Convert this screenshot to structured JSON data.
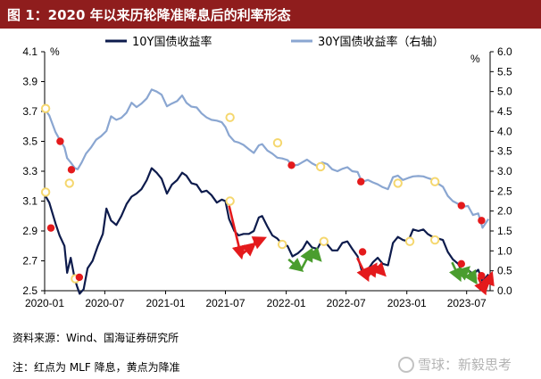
{
  "title": "图 1：2020 年以来历轮降准降息后的利率形态",
  "source": "资料来源：Wind、国海证券研究所",
  "note": "注：红点为 MLF 降息，黄点为降准",
  "watermark": "雪球：新毅思考",
  "colors": {
    "title_bg": "#8f1d1d",
    "series_10y": "#0d1b4c",
    "series_30y": "#8aa6d1",
    "mlf_cut": "#e41a1c",
    "rrr_cut": "#f5d76e",
    "arrow_up": "#e41a1c",
    "arrow_down": "#4a9d2e"
  },
  "chart_data": {
    "type": "line",
    "left_unit": "%",
    "right_unit": "%",
    "x_ticks": [
      "2020-01",
      "2020-07",
      "2021-01",
      "2021-07",
      "2022-01",
      "2022-07",
      "2023-01",
      "2023-07"
    ],
    "x_range": [
      "2020-01-01",
      "2023-09-10"
    ],
    "y_left": {
      "min": 2.5,
      "max": 4.1,
      "ticks": [
        "2.5",
        "2.7",
        "2.9",
        "3.1",
        "3.3",
        "3.5",
        "3.7",
        "3.9",
        "4.1"
      ]
    },
    "y_right": {
      "min": 0.0,
      "max": 6.0,
      "ticks": [
        "0.0",
        "0.5",
        "1.0",
        "1.5",
        "2.0",
        "2.5",
        "3.0",
        "3.5",
        "4.0",
        "4.5",
        "5.0",
        "5.5",
        "6.0"
      ]
    },
    "series": [
      {
        "name": "10Y国债收益率",
        "axis": "left",
        "points": [
          [
            "2020-01-02",
            3.14
          ],
          [
            "2020-01-15",
            3.09
          ],
          [
            "2020-02-03",
            2.95
          ],
          [
            "2020-02-15",
            2.87
          ],
          [
            "2020-03-01",
            2.8
          ],
          [
            "2020-03-09",
            2.62
          ],
          [
            "2020-03-20",
            2.72
          ],
          [
            "2020-04-01",
            2.58
          ],
          [
            "2020-04-08",
            2.53
          ],
          [
            "2020-04-16",
            2.48
          ],
          [
            "2020-04-28",
            2.51
          ],
          [
            "2020-05-10",
            2.65
          ],
          [
            "2020-05-25",
            2.7
          ],
          [
            "2020-06-10",
            2.8
          ],
          [
            "2020-06-25",
            2.88
          ],
          [
            "2020-07-06",
            3.05
          ],
          [
            "2020-07-20",
            2.97
          ],
          [
            "2020-08-05",
            2.94
          ],
          [
            "2020-08-20",
            3.0
          ],
          [
            "2020-09-05",
            3.08
          ],
          [
            "2020-09-20",
            3.13
          ],
          [
            "2020-10-05",
            3.15
          ],
          [
            "2020-10-20",
            3.18
          ],
          [
            "2020-11-05",
            3.24
          ],
          [
            "2020-11-20",
            3.32
          ],
          [
            "2020-12-05",
            3.29
          ],
          [
            "2020-12-20",
            3.25
          ],
          [
            "2021-01-05",
            3.15
          ],
          [
            "2021-01-20",
            3.21
          ],
          [
            "2021-02-05",
            3.24
          ],
          [
            "2021-02-20",
            3.29
          ],
          [
            "2021-03-05",
            3.27
          ],
          [
            "2021-03-20",
            3.22
          ],
          [
            "2021-04-05",
            3.21
          ],
          [
            "2021-04-20",
            3.16
          ],
          [
            "2021-05-05",
            3.17
          ],
          [
            "2021-05-20",
            3.14
          ],
          [
            "2021-06-05",
            3.09
          ],
          [
            "2021-06-20",
            3.11
          ],
          [
            "2021-07-01",
            3.1
          ],
          [
            "2021-07-12",
            2.98
          ],
          [
            "2021-07-28",
            2.9
          ],
          [
            "2021-08-10",
            2.87
          ],
          [
            "2021-08-25",
            2.88
          ],
          [
            "2021-09-10",
            2.88
          ],
          [
            "2021-09-25",
            2.9
          ],
          [
            "2021-10-10",
            2.99
          ],
          [
            "2021-10-20",
            3.0
          ],
          [
            "2021-11-05",
            2.93
          ],
          [
            "2021-11-20",
            2.87
          ],
          [
            "2021-12-05",
            2.85
          ],
          [
            "2021-12-20",
            2.81
          ],
          [
            "2022-01-05",
            2.8
          ],
          [
            "2022-01-20",
            2.73
          ],
          [
            "2022-02-05",
            2.75
          ],
          [
            "2022-02-20",
            2.78
          ],
          [
            "2022-03-05",
            2.83
          ],
          [
            "2022-03-20",
            2.79
          ],
          [
            "2022-04-05",
            2.78
          ],
          [
            "2022-04-20",
            2.84
          ],
          [
            "2022-05-05",
            2.81
          ],
          [
            "2022-05-20",
            2.77
          ],
          [
            "2022-06-05",
            2.77
          ],
          [
            "2022-06-20",
            2.82
          ],
          [
            "2022-07-05",
            2.83
          ],
          [
            "2022-07-20",
            2.78
          ],
          [
            "2022-08-05",
            2.73
          ],
          [
            "2022-08-18",
            2.63
          ],
          [
            "2022-09-05",
            2.64
          ],
          [
            "2022-09-20",
            2.69
          ],
          [
            "2022-10-05",
            2.72
          ],
          [
            "2022-10-20",
            2.68
          ],
          [
            "2022-11-05",
            2.67
          ],
          [
            "2022-11-20",
            2.82
          ],
          [
            "2022-12-05",
            2.86
          ],
          [
            "2022-12-20",
            2.84
          ],
          [
            "2023-01-05",
            2.83
          ],
          [
            "2023-01-20",
            2.91
          ],
          [
            "2023-02-05",
            2.9
          ],
          [
            "2023-02-20",
            2.91
          ],
          [
            "2023-03-05",
            2.88
          ],
          [
            "2023-03-20",
            2.86
          ],
          [
            "2023-04-05",
            2.85
          ],
          [
            "2023-04-20",
            2.84
          ],
          [
            "2023-05-05",
            2.76
          ],
          [
            "2023-05-20",
            2.71
          ],
          [
            "2023-06-05",
            2.68
          ],
          [
            "2023-06-15",
            2.64
          ],
          [
            "2023-07-05",
            2.64
          ],
          [
            "2023-07-20",
            2.61
          ],
          [
            "2023-08-05",
            2.64
          ],
          [
            "2023-08-18",
            2.56
          ],
          [
            "2023-09-05",
            2.61
          ]
        ]
      },
      {
        "name": "30Y国债收益率（右轴）",
        "axis": "right",
        "points": [
          [
            "2020-01-02",
            4.55
          ],
          [
            "2020-01-15",
            4.4
          ],
          [
            "2020-02-03",
            3.98
          ],
          [
            "2020-02-15",
            3.8
          ],
          [
            "2020-03-01",
            3.6
          ],
          [
            "2020-03-09",
            3.33
          ],
          [
            "2020-03-20",
            3.22
          ],
          [
            "2020-04-01",
            3.08
          ],
          [
            "2020-04-10",
            3.05
          ],
          [
            "2020-04-22",
            3.22
          ],
          [
            "2020-05-05",
            3.44
          ],
          [
            "2020-05-20",
            3.59
          ],
          [
            "2020-06-05",
            3.79
          ],
          [
            "2020-06-20",
            3.88
          ],
          [
            "2020-07-06",
            4.01
          ],
          [
            "2020-07-20",
            4.38
          ],
          [
            "2020-08-05",
            4.29
          ],
          [
            "2020-08-20",
            4.34
          ],
          [
            "2020-09-05",
            4.47
          ],
          [
            "2020-09-20",
            4.72
          ],
          [
            "2020-10-05",
            4.61
          ],
          [
            "2020-10-20",
            4.7
          ],
          [
            "2020-11-05",
            4.83
          ],
          [
            "2020-11-20",
            5.05
          ],
          [
            "2020-12-05",
            5.0
          ],
          [
            "2020-12-20",
            4.92
          ],
          [
            "2021-01-05",
            4.63
          ],
          [
            "2021-01-20",
            4.7
          ],
          [
            "2021-02-05",
            4.76
          ],
          [
            "2021-02-20",
            4.9
          ],
          [
            "2021-03-05",
            4.72
          ],
          [
            "2021-03-20",
            4.62
          ],
          [
            "2021-04-05",
            4.6
          ],
          [
            "2021-04-20",
            4.45
          ],
          [
            "2021-05-05",
            4.35
          ],
          [
            "2021-05-20",
            4.29
          ],
          [
            "2021-06-05",
            4.27
          ],
          [
            "2021-06-20",
            4.23
          ],
          [
            "2021-07-01",
            4.11
          ],
          [
            "2021-07-12",
            3.9
          ],
          [
            "2021-07-28",
            3.75
          ],
          [
            "2021-08-10",
            3.72
          ],
          [
            "2021-08-25",
            3.66
          ],
          [
            "2021-09-10",
            3.55
          ],
          [
            "2021-09-25",
            3.46
          ],
          [
            "2021-10-10",
            3.65
          ],
          [
            "2021-10-20",
            3.68
          ],
          [
            "2021-11-05",
            3.52
          ],
          [
            "2021-11-20",
            3.44
          ],
          [
            "2021-12-05",
            3.34
          ],
          [
            "2021-12-20",
            3.32
          ],
          [
            "2022-01-05",
            3.28
          ],
          [
            "2022-01-20",
            3.14
          ],
          [
            "2022-02-05",
            3.16
          ],
          [
            "2022-02-20",
            3.23
          ],
          [
            "2022-03-05",
            3.29
          ],
          [
            "2022-03-20",
            3.2
          ],
          [
            "2022-04-05",
            3.13
          ],
          [
            "2022-04-20",
            3.22
          ],
          [
            "2022-05-05",
            3.18
          ],
          [
            "2022-05-20",
            3.05
          ],
          [
            "2022-06-05",
            3.0
          ],
          [
            "2022-06-20",
            3.06
          ],
          [
            "2022-07-05",
            3.1
          ],
          [
            "2022-07-20",
            3.0
          ],
          [
            "2022-08-05",
            2.98
          ],
          [
            "2022-08-18",
            2.73
          ],
          [
            "2022-09-05",
            2.78
          ],
          [
            "2022-09-20",
            2.72
          ],
          [
            "2022-10-05",
            2.67
          ],
          [
            "2022-10-20",
            2.6
          ],
          [
            "2022-11-05",
            2.55
          ],
          [
            "2022-11-20",
            2.85
          ],
          [
            "2022-12-05",
            2.89
          ],
          [
            "2022-12-20",
            2.78
          ],
          [
            "2023-01-05",
            2.83
          ],
          [
            "2023-01-20",
            2.87
          ],
          [
            "2023-02-05",
            2.88
          ],
          [
            "2023-02-20",
            2.87
          ],
          [
            "2023-03-05",
            2.83
          ],
          [
            "2023-03-20",
            2.79
          ],
          [
            "2023-04-05",
            2.69
          ],
          [
            "2023-04-20",
            2.61
          ],
          [
            "2023-05-05",
            2.38
          ],
          [
            "2023-05-20",
            2.25
          ],
          [
            "2023-06-05",
            2.18
          ],
          [
            "2023-06-15",
            2.1
          ],
          [
            "2023-07-05",
            2.13
          ],
          [
            "2023-07-20",
            1.9
          ],
          [
            "2023-08-05",
            1.94
          ],
          [
            "2023-08-18",
            1.58
          ],
          [
            "2023-09-05",
            1.8
          ]
        ]
      }
    ],
    "markers": [
      {
        "date": "2020-01-04",
        "value": 3.16,
        "axis": "left",
        "kind": "rrr"
      },
      {
        "date": "2020-01-04",
        "value": 3.72,
        "axis": "left",
        "kind": "rrr"
      },
      {
        "date": "2020-01-20",
        "value": 2.92,
        "axis": "left",
        "kind": "mlf"
      },
      {
        "date": "2020-02-17",
        "value": 3.5,
        "axis": "left",
        "kind": "mlf"
      },
      {
        "date": "2020-03-16",
        "value": 3.22,
        "axis": "left",
        "kind": "rrr"
      },
      {
        "date": "2020-03-22",
        "value": 3.31,
        "axis": "left",
        "kind": "mlf"
      },
      {
        "date": "2020-04-03",
        "value": 2.58,
        "axis": "left",
        "kind": "rrr"
      },
      {
        "date": "2020-04-15",
        "value": 2.59,
        "axis": "left",
        "kind": "mlf"
      },
      {
        "date": "2021-07-15",
        "value": 3.1,
        "axis": "left",
        "kind": "rrr"
      },
      {
        "date": "2021-07-15",
        "value": 3.66,
        "axis": "left",
        "kind": "rrr"
      },
      {
        "date": "2021-12-06",
        "value": 3.49,
        "axis": "left",
        "kind": "rrr"
      },
      {
        "date": "2021-12-20",
        "value": 2.81,
        "axis": "left",
        "kind": "rrr"
      },
      {
        "date": "2022-01-17",
        "value": 3.34,
        "axis": "left",
        "kind": "mlf"
      },
      {
        "date": "2022-04-15",
        "value": 3.33,
        "axis": "left",
        "kind": "rrr"
      },
      {
        "date": "2022-04-25",
        "value": 2.83,
        "axis": "left",
        "kind": "rrr"
      },
      {
        "date": "2022-08-15",
        "value": 3.23,
        "axis": "left",
        "kind": "mlf"
      },
      {
        "date": "2022-08-20",
        "value": 2.76,
        "axis": "left",
        "kind": "mlf"
      },
      {
        "date": "2022-12-05",
        "value": 3.22,
        "axis": "left",
        "kind": "rrr"
      },
      {
        "date": "2023-01-10",
        "value": 2.83,
        "axis": "left",
        "kind": "rrr"
      },
      {
        "date": "2023-03-27",
        "value": 3.23,
        "axis": "left",
        "kind": "rrr"
      },
      {
        "date": "2023-03-27",
        "value": 2.84,
        "axis": "left",
        "kind": "rrr"
      },
      {
        "date": "2023-06-15",
        "value": 3.07,
        "axis": "left",
        "kind": "mlf"
      },
      {
        "date": "2023-06-15",
        "value": 2.68,
        "axis": "left",
        "kind": "mlf"
      },
      {
        "date": "2023-08-15",
        "value": 2.97,
        "axis": "left",
        "kind": "mlf"
      },
      {
        "date": "2023-08-15",
        "value": 2.6,
        "axis": "left",
        "kind": "mlf"
      }
    ],
    "arrows": [
      {
        "from": [
          "2021-07-12",
          3.07
        ],
        "to": [
          "2021-08-18",
          2.73
        ],
        "dir": "down",
        "color": "red"
      },
      {
        "from": [
          "2021-08-18",
          2.74
        ],
        "to": [
          "2021-09-25",
          2.81
        ],
        "dir": "up",
        "color": "red"
      },
      {
        "from": [
          "2021-09-25",
          2.82
        ],
        "to": [
          "2021-10-25",
          2.85
        ],
        "dir": "up",
        "color": "red"
      },
      {
        "from": [
          "2022-01-08",
          2.71
        ],
        "to": [
          "2022-02-15",
          2.64
        ],
        "dir": "down",
        "color": "green"
      },
      {
        "from": [
          "2022-02-15",
          2.64
        ],
        "to": [
          "2022-03-18",
          2.77
        ],
        "dir": "up",
        "color": "green"
      },
      {
        "from": [
          "2022-03-18",
          2.77
        ],
        "to": [
          "2022-04-12",
          2.71
        ],
        "dir": "down",
        "color": "green"
      },
      {
        "from": [
          "2022-08-04",
          2.72
        ],
        "to": [
          "2022-09-04",
          2.58
        ],
        "dir": "down",
        "color": "red"
      },
      {
        "from": [
          "2022-09-04",
          2.59
        ],
        "to": [
          "2022-09-28",
          2.67
        ],
        "dir": "up",
        "color": "red"
      },
      {
        "from": [
          "2022-09-28",
          2.67
        ],
        "to": [
          "2022-10-24",
          2.61
        ],
        "dir": "down",
        "color": "red"
      },
      {
        "from": [
          "2023-05-18",
          2.69
        ],
        "to": [
          "2023-06-10",
          2.58
        ],
        "dir": "down",
        "color": "green"
      },
      {
        "from": [
          "2023-06-10",
          2.6
        ],
        "to": [
          "2023-07-05",
          2.65
        ],
        "dir": "up",
        "color": "green"
      },
      {
        "from": [
          "2023-07-05",
          2.64
        ],
        "to": [
          "2023-07-28",
          2.56
        ],
        "dir": "down",
        "color": "green"
      },
      {
        "from": [
          "2023-08-05",
          2.59
        ],
        "to": [
          "2023-08-25",
          2.49
        ],
        "dir": "down",
        "color": "red"
      },
      {
        "from": [
          "2023-08-25",
          2.49
        ],
        "to": [
          "2023-09-14",
          2.61
        ],
        "dir": "up",
        "color": "red"
      }
    ]
  }
}
